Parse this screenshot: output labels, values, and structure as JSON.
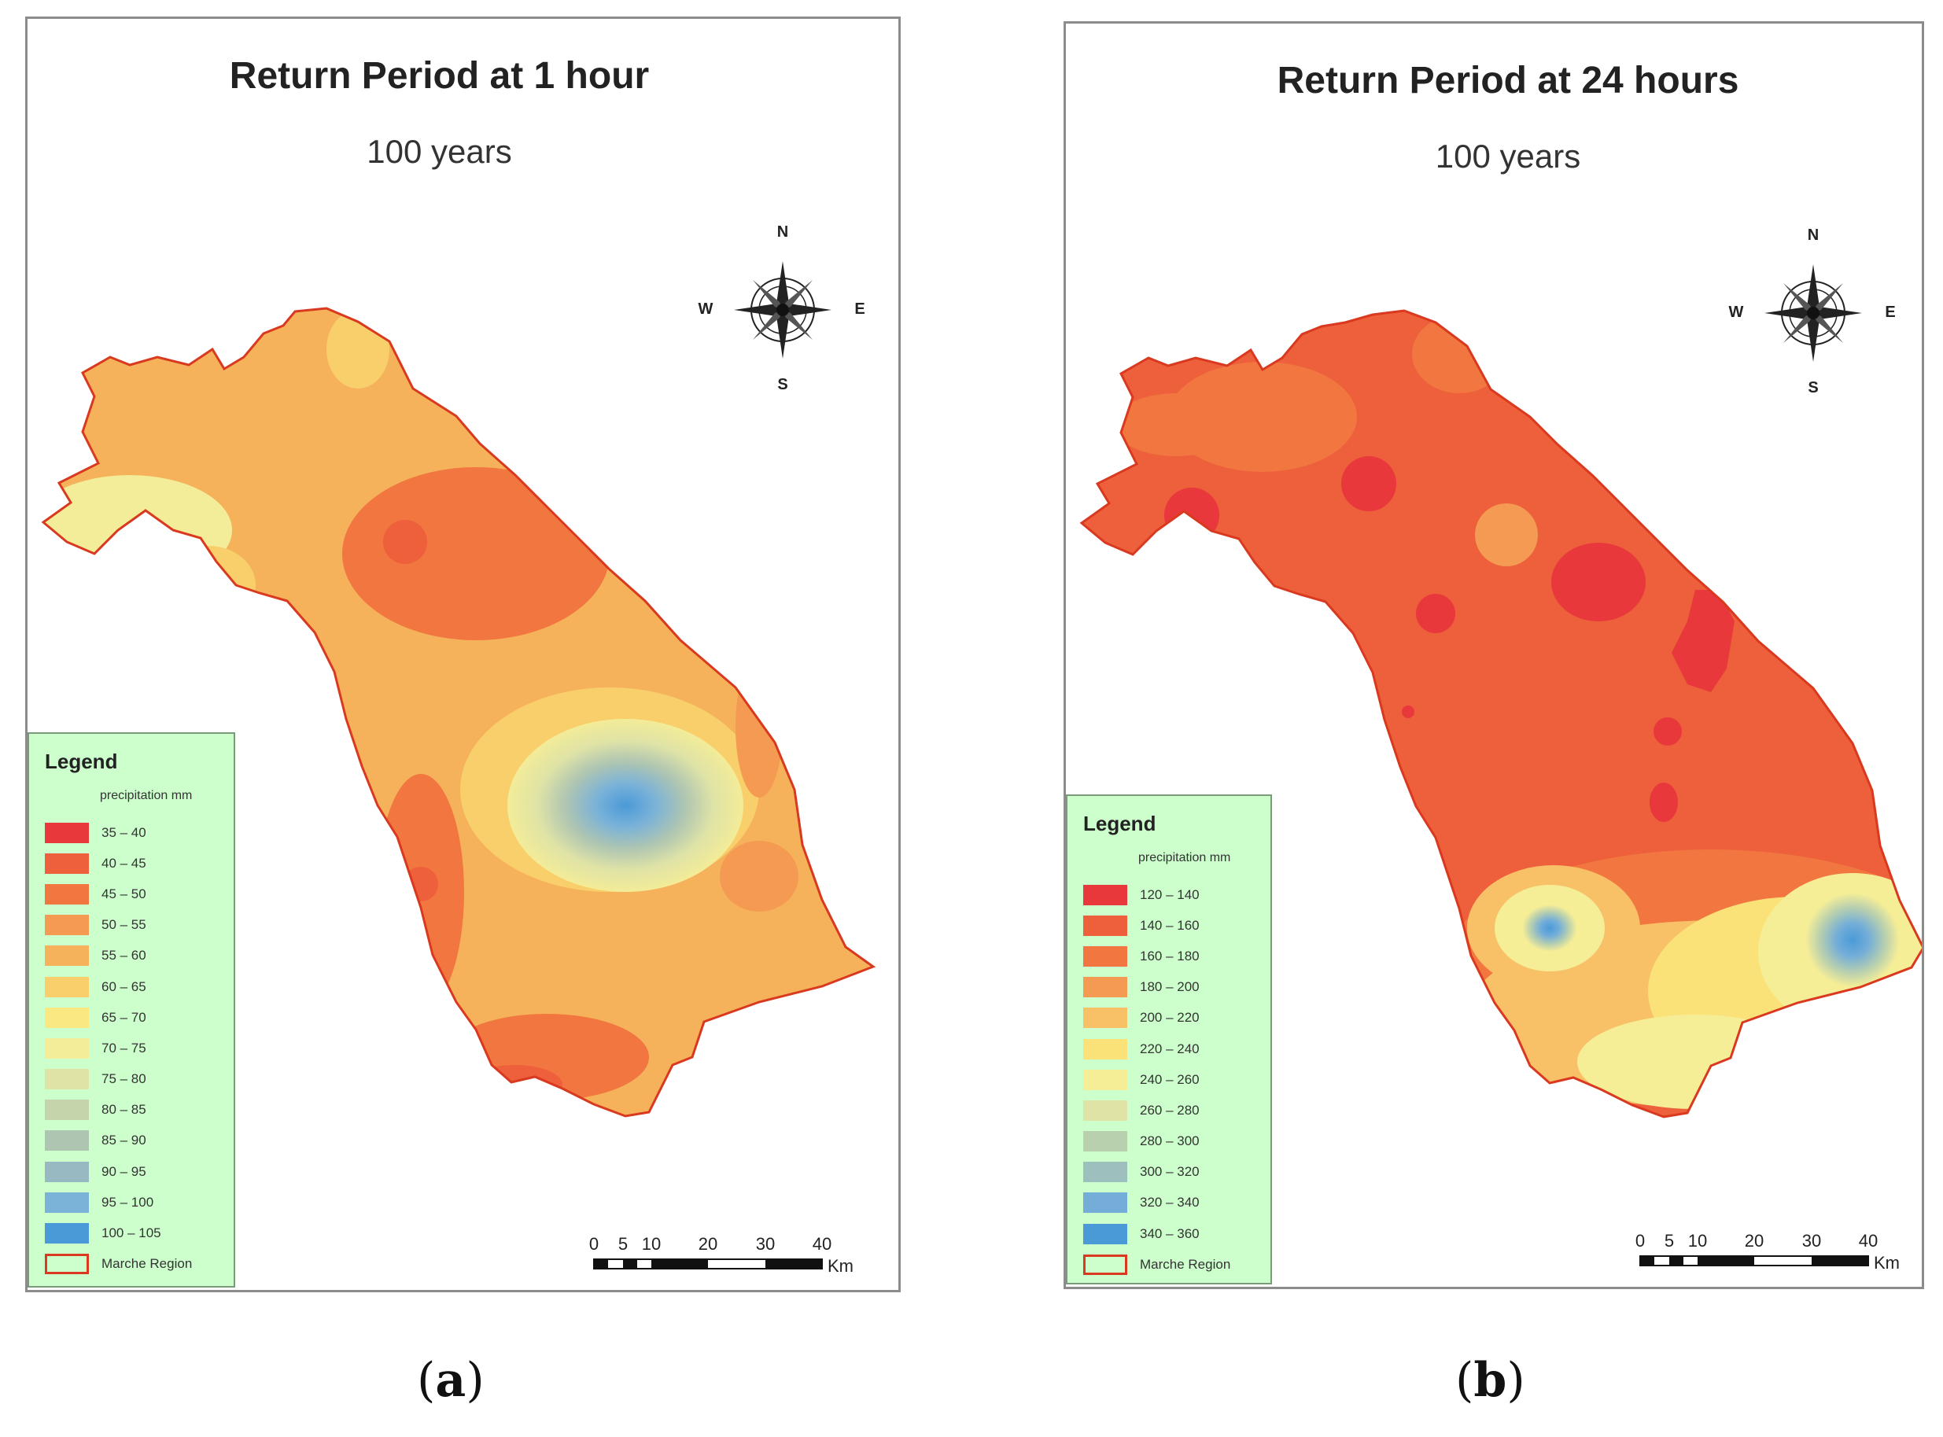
{
  "panels": {
    "a": {
      "title": "Return Period at 1 hour",
      "subtitle": "100 years",
      "caption_letter": "a",
      "legend": {
        "title": "Legend",
        "unit": "precipitation mm",
        "items": [
          {
            "label": "35 – 40",
            "color": "#e8383c"
          },
          {
            "label": "40 – 45",
            "color": "#ee5f3c"
          },
          {
            "label": "45 – 50",
            "color": "#f1763f"
          },
          {
            "label": "50 – 55",
            "color": "#f49a52"
          },
          {
            "label": "55 – 60",
            "color": "#f5b25b"
          },
          {
            "label": "60 – 65",
            "color": "#f8cf6a"
          },
          {
            "label": "65 – 70",
            "color": "#fae882"
          },
          {
            "label": "70 – 75",
            "color": "#f3ec98"
          },
          {
            "label": "75 – 80",
            "color": "#dfe3a6"
          },
          {
            "label": "80 – 85",
            "color": "#c6d4ac"
          },
          {
            "label": "85 – 90",
            "color": "#aec5b2"
          },
          {
            "label": "90 – 95",
            "color": "#98b9c2"
          },
          {
            "label": "95 – 100",
            "color": "#7ab2d8"
          },
          {
            "label": "100 – 105",
            "color": "#4a9ad7"
          },
          {
            "label": "Marche Region",
            "boundary": true
          }
        ]
      },
      "scale": {
        "ticks": [
          "0",
          "5",
          "10",
          "20",
          "30",
          "40"
        ],
        "unit": "Km"
      },
      "compass": {
        "n": "N",
        "s": "S",
        "e": "E",
        "w": "W"
      }
    },
    "b": {
      "title": "Return Period at 24 hours",
      "subtitle": "100 years",
      "caption_letter": "b",
      "legend": {
        "title": "Legend",
        "unit": "precipitation mm",
        "items": [
          {
            "label": "120 – 140",
            "color": "#e8383c"
          },
          {
            "label": "140 – 160",
            "color": "#ee5f3c"
          },
          {
            "label": "160 – 180",
            "color": "#f1763f"
          },
          {
            "label": "180 – 200",
            "color": "#f49a52"
          },
          {
            "label": "200 – 220",
            "color": "#f8c168"
          },
          {
            "label": "220 – 240",
            "color": "#fae178"
          },
          {
            "label": "240 – 260",
            "color": "#f6ee97"
          },
          {
            "label": "260 – 280",
            "color": "#dfe3a6"
          },
          {
            "label": "280 – 300",
            "color": "#b9d0ae"
          },
          {
            "label": "300 – 320",
            "color": "#9dbfbd"
          },
          {
            "label": "320 – 340",
            "color": "#74aed8"
          },
          {
            "label": "340 – 360",
            "color": "#4a9ad7"
          },
          {
            "label": "Marche Region",
            "boundary": true
          }
        ]
      },
      "scale": {
        "ticks": [
          "0",
          "5",
          "10",
          "20",
          "30",
          "40"
        ],
        "unit": "Km"
      },
      "compass": {
        "n": "N",
        "s": "S",
        "e": "E",
        "w": "W"
      }
    }
  },
  "colors": {
    "boundary": "#d9391f",
    "panel_border": "#8c8c8c",
    "legend_bg": "#ccffcc"
  }
}
